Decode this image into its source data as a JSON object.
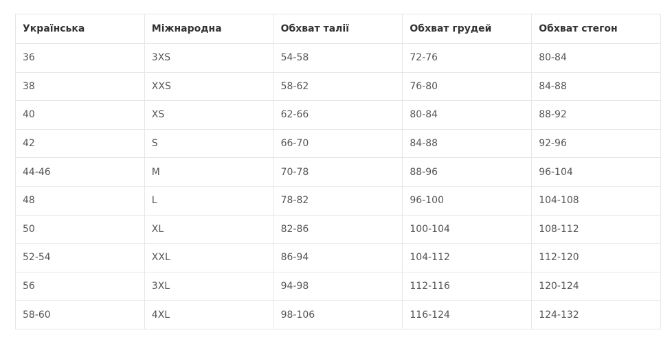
{
  "table": {
    "headers": [
      "Українська",
      "Міжнародна",
      "Обхват талії",
      "Обхват грудей",
      "Обхват стегон"
    ],
    "rows": [
      [
        "36",
        "3XS",
        "54-58",
        "72-76",
        "80-84"
      ],
      [
        "38",
        "XXS",
        "58-62",
        "76-80",
        "84-88"
      ],
      [
        "40",
        "XS",
        "62-66",
        "80-84",
        "88-92"
      ],
      [
        "42",
        "S",
        "66-70",
        "84-88",
        "92-96"
      ],
      [
        "44-46",
        "M",
        "70-78",
        "88-96",
        "96-104"
      ],
      [
        "48",
        "L",
        "78-82",
        "96-100",
        "104-108"
      ],
      [
        "50",
        "XL",
        "82-86",
        "100-104",
        "108-112"
      ],
      [
        "52-54",
        "XXL",
        "86-94",
        "104-112",
        "112-120"
      ],
      [
        "56",
        "3XL",
        "94-98",
        "112-116",
        "120-124"
      ],
      [
        "58-60",
        "4XL",
        "98-106",
        "116-124",
        "124-132"
      ]
    ]
  }
}
